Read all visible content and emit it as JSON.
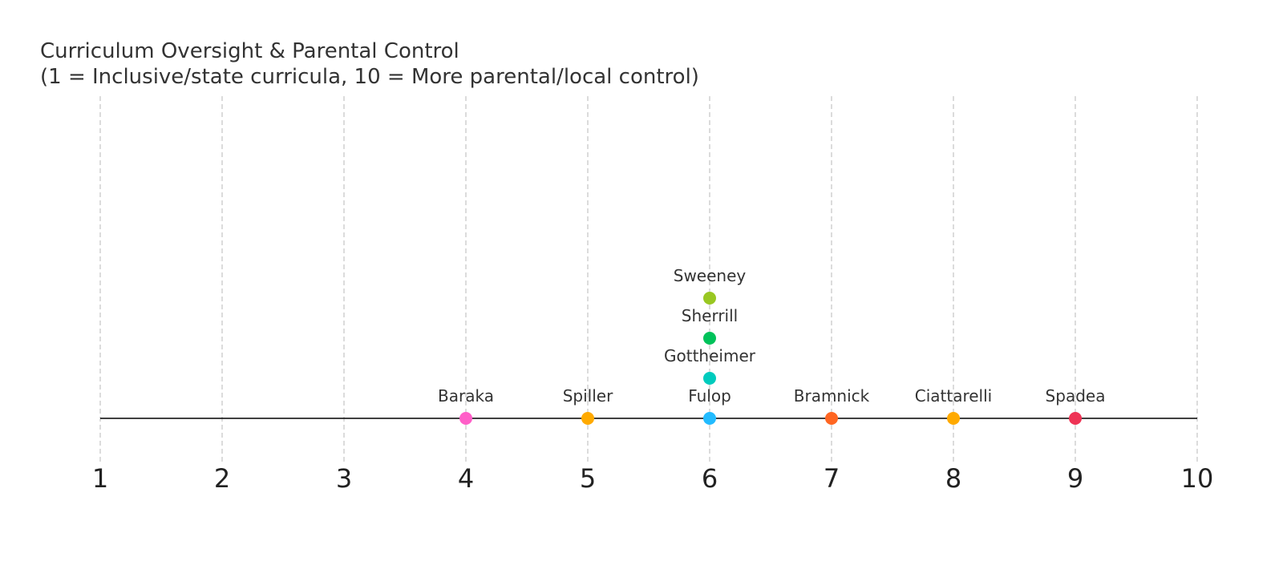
{
  "chart_data": {
    "type": "scatter",
    "title": "Curriculum Oversight & Parental Control",
    "subtitle": "(1 = Inclusive/state curricula, 10 = More parental/local control)",
    "xlim": [
      1,
      10
    ],
    "ticks": [
      "1",
      "2",
      "3",
      "4",
      "5",
      "6",
      "7",
      "8",
      "9",
      "10"
    ],
    "grid": true,
    "points": [
      {
        "label": "Baraka",
        "x": 4,
        "stack": 0,
        "color": "#ff5fc8"
      },
      {
        "label": "Spiller",
        "x": 5,
        "stack": 0,
        "color": "#ffaa00"
      },
      {
        "label": "Fulop",
        "x": 6,
        "stack": 0,
        "color": "#22bbff"
      },
      {
        "label": "Gottheimer",
        "x": 6,
        "stack": 1,
        "color": "#00cbbd"
      },
      {
        "label": "Sherrill",
        "x": 6,
        "stack": 2,
        "color": "#00c25a"
      },
      {
        "label": "Sweeney",
        "x": 6,
        "stack": 3,
        "color": "#99c722"
      },
      {
        "label": "Bramnick",
        "x": 7,
        "stack": 0,
        "color": "#ff6622"
      },
      {
        "label": "Ciattarelli",
        "x": 8,
        "stack": 0,
        "color": "#ffaa00"
      },
      {
        "label": "Spadea",
        "x": 9,
        "stack": 0,
        "color": "#ee3355"
      }
    ]
  }
}
